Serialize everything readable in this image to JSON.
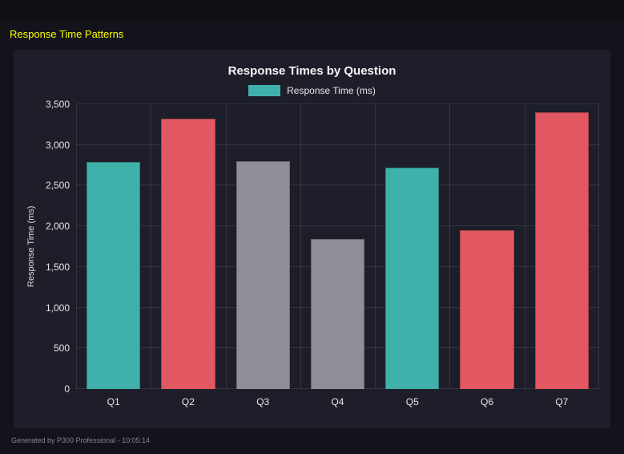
{
  "page": {
    "title": "Response Time Patterns",
    "footer": "Generated by P300 Professional - 10:05:14"
  },
  "chart_data": {
    "type": "bar",
    "title": "Response Times by Question",
    "legend": [
      {
        "label": "Response Time (ms)",
        "color": "#3fb1aa"
      }
    ],
    "categories": [
      "Q1",
      "Q2",
      "Q3",
      "Q4",
      "Q5",
      "Q6",
      "Q7"
    ],
    "values": [
      2790,
      3320,
      2800,
      1840,
      2720,
      1950,
      3400
    ],
    "bar_colors": [
      "#3fb1aa",
      "#e25862",
      "#8f8f97",
      "#8f8f97",
      "#3fb1aa",
      "#e25862",
      "#e25862"
    ],
    "xlabel": "",
    "ylabel": "Response Time (ms)",
    "ylim": [
      0,
      3500
    ],
    "ytick_step": 500,
    "yticks": [
      "0",
      "500",
      "1,000",
      "1,500",
      "2,000",
      "2,500",
      "3,000",
      "3,500"
    ],
    "grid": true,
    "legend_position": "top"
  },
  "colors": {
    "background": "#13131c",
    "panel": "#1e1e2b",
    "title_yellow": "#ffff00",
    "grid": "rgba(255,255,255,0.10)"
  }
}
